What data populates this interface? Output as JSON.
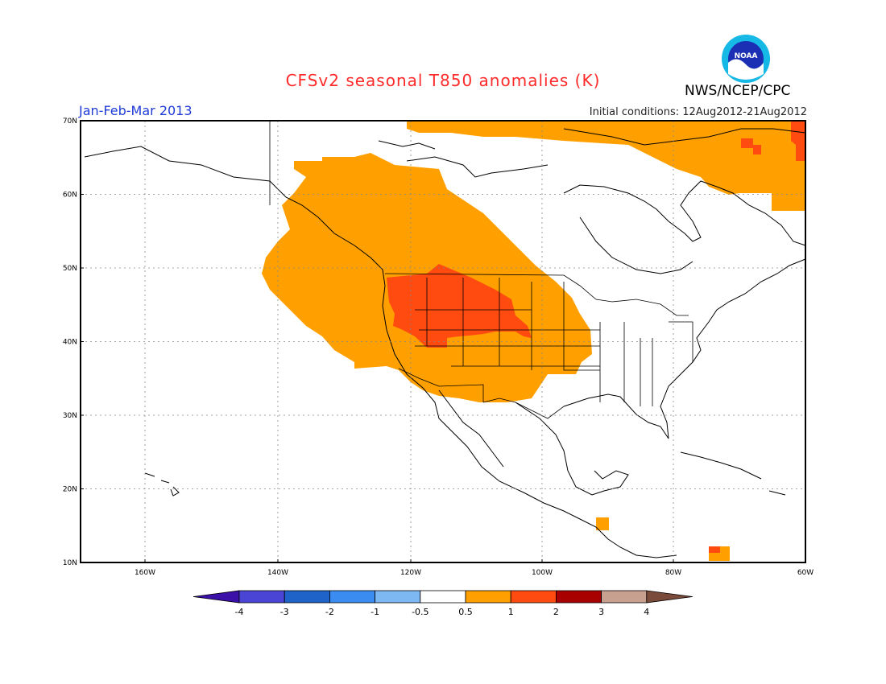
{
  "header": {
    "title": "CFSv2 seasonal T850 anomalies (K)",
    "period": "Jan-Feb-Mar 2013",
    "initial_conditions": "Initial conditions: 12Aug2012-21Aug2012",
    "agency": "NWS/NCEP/CPC",
    "logo_text": "NOAA"
  },
  "map": {
    "lat_labels": [
      "70N",
      "60N",
      "50N",
      "40N",
      "30N",
      "20N",
      "10N"
    ],
    "lon_labels": [
      "160W",
      "140W",
      "120W",
      "100W",
      "80W",
      "60W"
    ]
  },
  "colorbar": {
    "labels": [
      "-4",
      "-3",
      "-2",
      "-1",
      "-0.5",
      "0.5",
      "1",
      "2",
      "3",
      "4"
    ],
    "colors": [
      "#3a10a8",
      "#4b45d6",
      "#1f62c8",
      "#3a8cf0",
      "#7db8f2",
      "#ffffff",
      "#ffa000",
      "#ff4a10",
      "#a80000",
      "#c8a090",
      "#7a4a3a"
    ]
  },
  "anomaly_colors": {
    "plus_0_5_to_1": "#ffa000",
    "plus_1_to_2": "#ff4a10"
  }
}
